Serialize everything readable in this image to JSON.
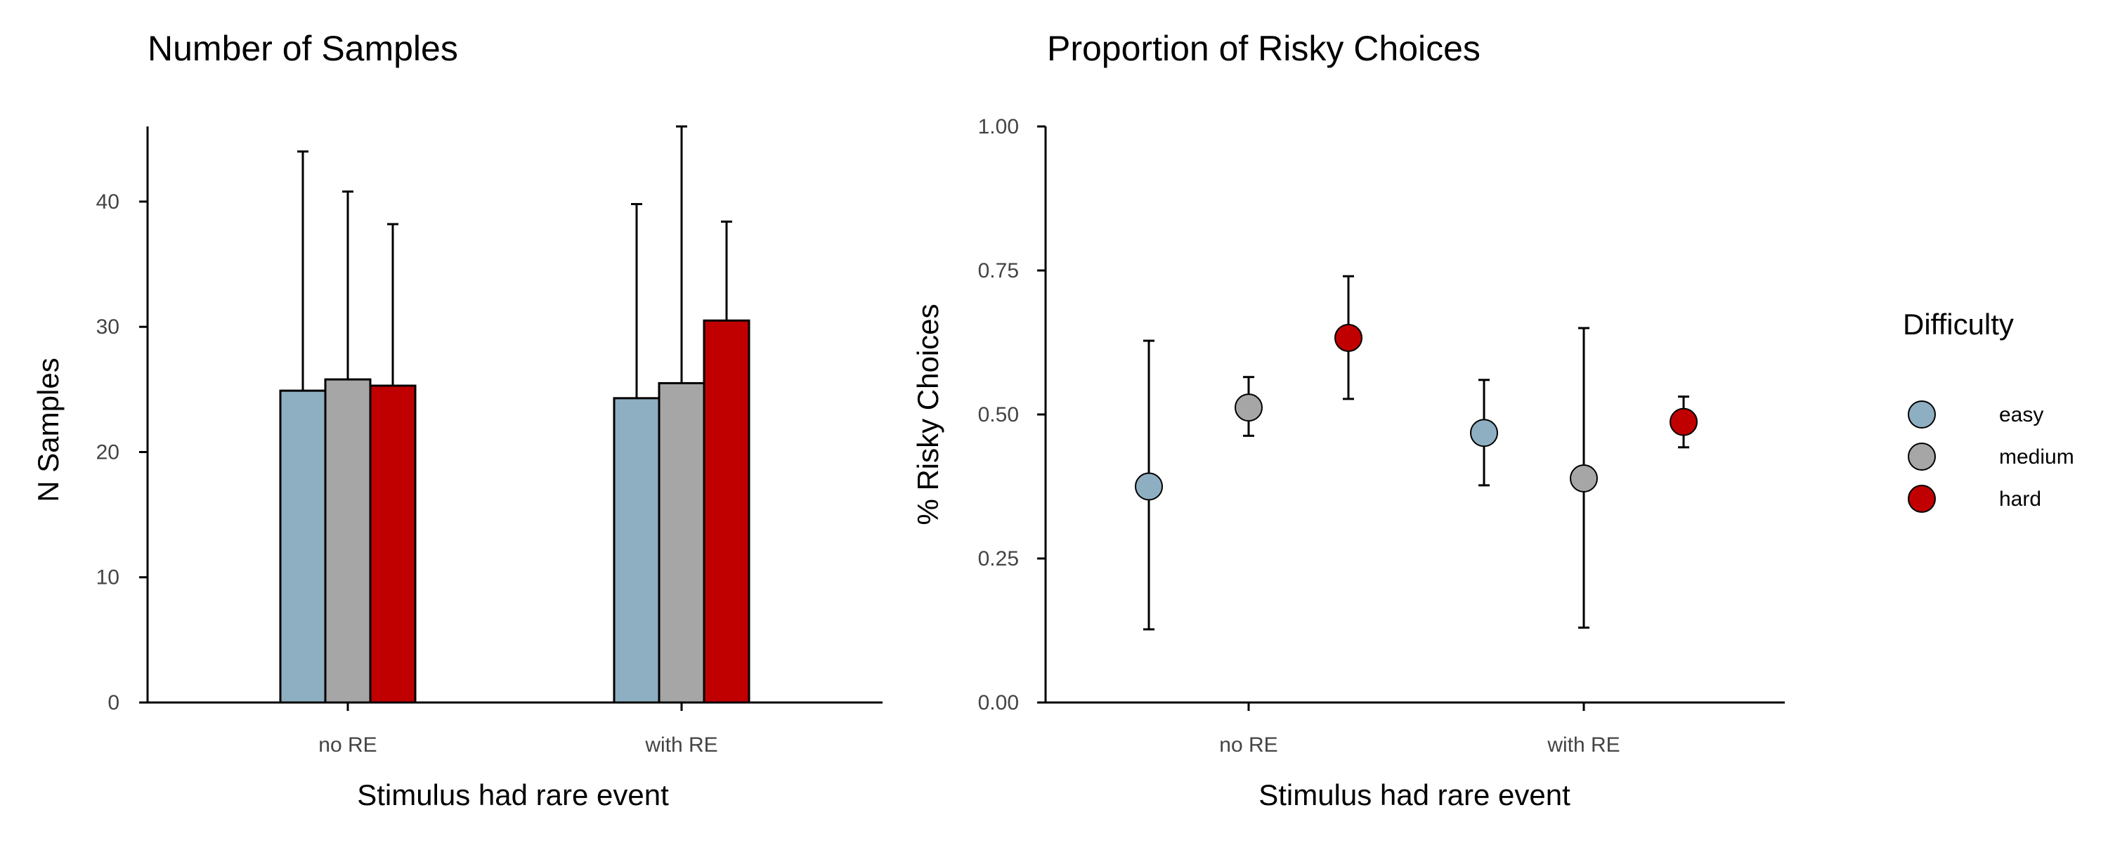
{
  "colors": {
    "easy": "#8eafc2",
    "medium": "#a6a6a6",
    "hard": "#c00000",
    "axis": "#000000"
  },
  "legend": {
    "title": "Difficulty",
    "entries": [
      {
        "label": "easy",
        "color": "#8eafc2"
      },
      {
        "label": "medium",
        "color": "#a6a6a6"
      },
      {
        "label": "hard",
        "color": "#c00000"
      }
    ]
  },
  "chart_data": [
    {
      "type": "bar",
      "title": "Number of Samples",
      "xlabel": "Stimulus had rare event",
      "ylabel": "N Samples",
      "categories": [
        "no RE",
        "with RE"
      ],
      "ylim": [
        0,
        46
      ],
      "yticks": [
        0,
        10,
        20,
        30,
        40
      ],
      "series": [
        {
          "name": "easy",
          "values": [
            24.9,
            24.3
          ],
          "err_upper": [
            44.0,
            39.8
          ]
        },
        {
          "name": "medium",
          "values": [
            25.8,
            25.5
          ],
          "err_upper": [
            40.8,
            46.0
          ]
        },
        {
          "name": "hard",
          "values": [
            25.3,
            30.5
          ],
          "err_upper": [
            38.2,
            38.4
          ]
        }
      ]
    },
    {
      "type": "scatter",
      "title": "Proportion of Risky Choices",
      "xlabel": "Stimulus had rare event",
      "ylabel": "% Risky Choices",
      "categories": [
        "no RE",
        "with RE"
      ],
      "ylim": [
        0,
        1
      ],
      "yticks": [
        "0.00",
        "0.25",
        "0.50",
        "0.75",
        "1.00"
      ],
      "series": [
        {
          "name": "easy",
          "values": [
            0.375,
            0.468
          ],
          "err_low": [
            0.127,
            0.377
          ],
          "err_high": [
            0.628,
            0.56
          ]
        },
        {
          "name": "medium",
          "values": [
            0.512,
            0.389
          ],
          "err_low": [
            0.463,
            0.13
          ],
          "err_high": [
            0.565,
            0.65
          ]
        },
        {
          "name": "hard",
          "values": [
            0.633,
            0.487
          ],
          "err_low": [
            0.527,
            0.443
          ],
          "err_high": [
            0.74,
            0.531
          ]
        }
      ]
    }
  ]
}
